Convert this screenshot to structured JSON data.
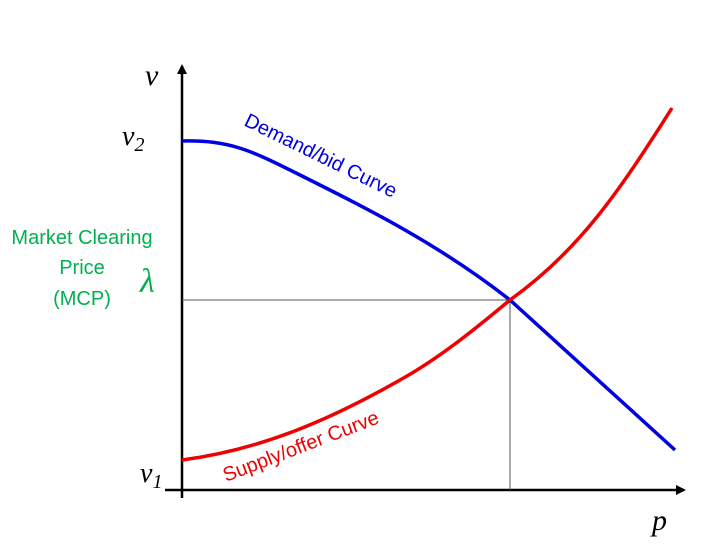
{
  "axes": {
    "y_label": "v",
    "x_label": "p"
  },
  "levels": {
    "upper": {
      "symbol": "v",
      "subscript": "2"
    },
    "lower": {
      "symbol": "v",
      "subscript": "1"
    },
    "clearing": "λ"
  },
  "annotation": {
    "lines": [
      "Market Clearing",
      "Price",
      "(MCP)"
    ]
  },
  "curves": {
    "demand": "Demand/bid Curve",
    "supply": "Supply/offer Curve"
  }
}
